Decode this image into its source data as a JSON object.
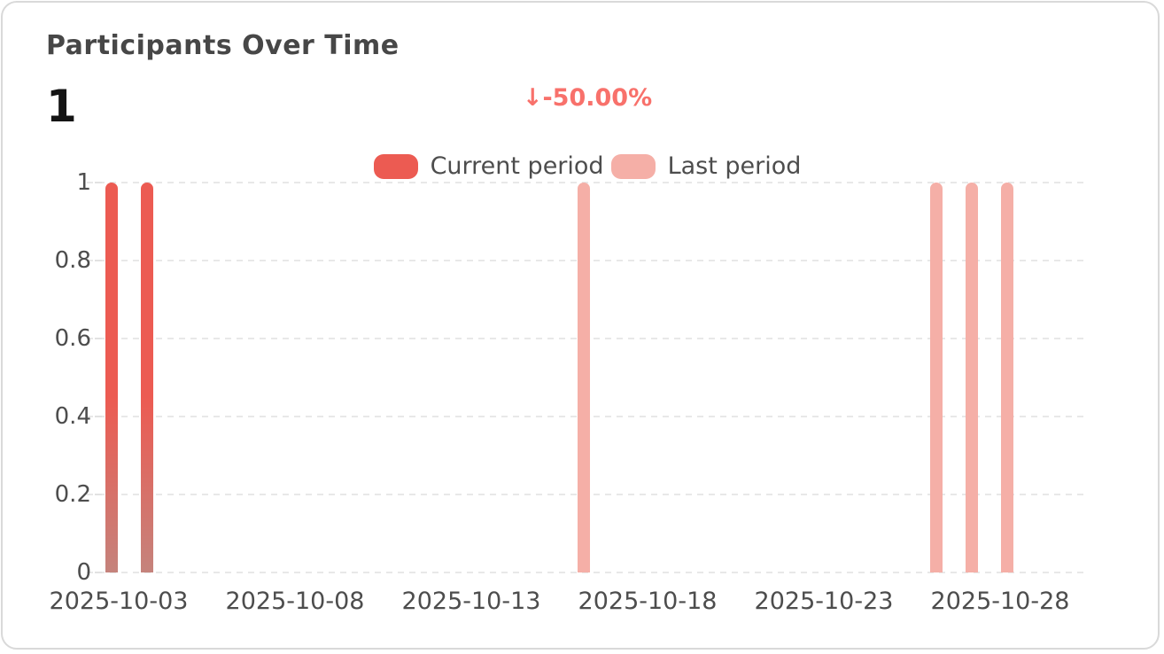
{
  "card": {
    "title": "Participants Over Time",
    "big_number": "1",
    "delta_text": "↓-50.00%"
  },
  "colors": {
    "current_period": "#ec5b52",
    "current_period_fade": "#c5837c",
    "last_period": "#f5afa7",
    "delta_text": "#f8716b",
    "gridline": "#e8e8e8",
    "card_border": "#d9d9d9"
  },
  "legend": {
    "items": [
      {
        "label": "Current period",
        "color": "#ec5b52"
      },
      {
        "label": "Last period",
        "color": "#f5afa7"
      }
    ]
  },
  "chart_data": {
    "type": "bar",
    "title": "Participants Over Time",
    "xlabel": "",
    "ylabel": "",
    "ylim": [
      0,
      1
    ],
    "grid": true,
    "legend_position": "top-center",
    "x_tick_labels": [
      "2025-10-03",
      "2025-10-08",
      "2025-10-13",
      "2025-10-18",
      "2025-10-23",
      "2025-10-28"
    ],
    "y_tick_labels": [
      "0",
      "0.2",
      "0.4",
      "0.6",
      "0.8",
      "1"
    ],
    "y_ticks": [
      0,
      0.2,
      0.4,
      0.6,
      0.8,
      1
    ],
    "series": [
      {
        "name": "Current period",
        "color": "#ec5b52",
        "points": [
          {
            "date": "2025-10-03",
            "value": 1
          },
          {
            "date": "2025-10-04",
            "value": 1
          }
        ]
      },
      {
        "name": "Last period",
        "color": "#f5afa7",
        "points": [
          {
            "date": "2025-10-16",
            "value": 1
          },
          {
            "date": "2025-10-26",
            "value": 1
          },
          {
            "date": "2025-10-27",
            "value": 1
          },
          {
            "date": "2025-10-28",
            "value": 1
          }
        ]
      }
    ]
  }
}
